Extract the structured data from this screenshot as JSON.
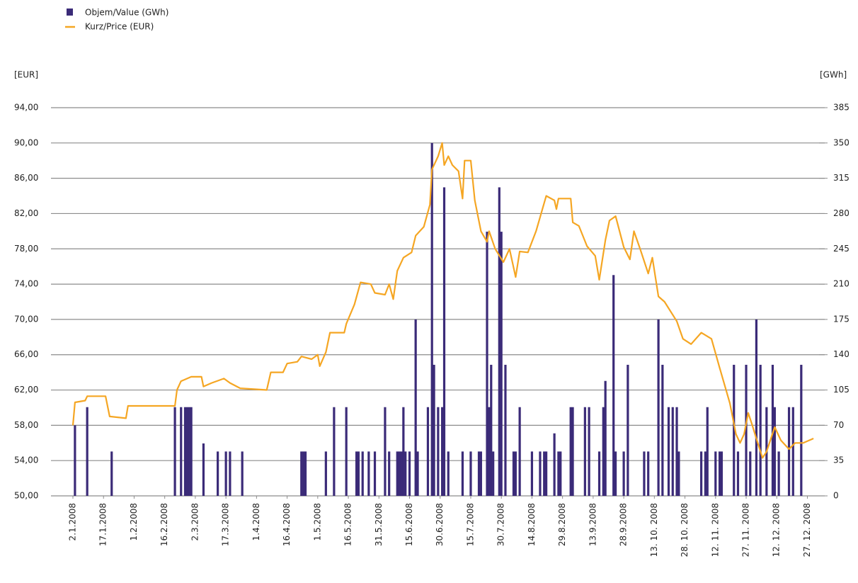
{
  "chart_data": {
    "type": "combo",
    "ylabel": "[EUR]",
    "y2label": "[GWh]",
    "grid": true,
    "legend": "top-left",
    "xlim": [
      "2.1.2008",
      "31.12.2008"
    ],
    "xticks": [
      "2.1.2008",
      "17.1.2008",
      "1.2.2008",
      "16.2.2008",
      "2.3.2008",
      "17.3.2008",
      "1.4.2008",
      "16.4.2008",
      "1.5.2008",
      "16.5.2008",
      "31.5.2008",
      "15.6.2008",
      "30.6.2008",
      "15.7.2008",
      "30.7.2008",
      "14.8.2008",
      "29.8.2008",
      "13.9.2008",
      "28.9.2008",
      "13. 10. 2008",
      "28. 10. 2008",
      "12. 11. 2008",
      "27. 11. 2008",
      "12. 12. 2008",
      "27. 12. 2008"
    ],
    "ylim": [
      50,
      94
    ],
    "yticks": [
      {
        "value": 50,
        "label": "50,00"
      },
      {
        "value": 54,
        "label": "54,00"
      },
      {
        "value": 58,
        "label": "58,00"
      },
      {
        "value": 62,
        "label": "62,00"
      },
      {
        "value": 66,
        "label": "66,00"
      },
      {
        "value": 70,
        "label": "70,00"
      },
      {
        "value": 74,
        "label": "74,00"
      },
      {
        "value": 78,
        "label": "78,00"
      },
      {
        "value": 82,
        "label": "82,00"
      },
      {
        "value": 86,
        "label": "86,00"
      },
      {
        "value": 90,
        "label": "90,00"
      },
      {
        "value": 94,
        "label": "94,00"
      }
    ],
    "y2lim": [
      0,
      385
    ],
    "y2ticks": [
      0,
      35,
      70,
      105,
      140,
      175,
      210,
      245,
      280,
      315,
      350,
      385
    ],
    "series": [
      {
        "name": "Objem/Value (GWh)",
        "type": "bar",
        "axis": "y2",
        "color": "#3b2b78",
        "x": [
          "3.1.2008",
          "9.1.2008",
          "21.1.2008",
          "21.2.2008",
          "24.2.2008",
          "26.2.2008",
          "27.2.2008",
          "28.2.2008",
          "29.2.2008",
          "6.3.2008",
          "13.3.2008",
          "17.3.2008",
          "19.3.2008",
          "25.3.2008",
          "23.4.2008",
          "24.4.2008",
          "25.4.2008",
          "5.5.2008",
          "9.5.2008",
          "15.5.2008",
          "20.5.2008",
          "21.5.2008",
          "23.5.2008",
          "26.5.2008",
          "29.5.2008",
          "3.6.2008",
          "5.6.2008",
          "9.6.2008",
          "10.6.2008",
          "11.6.2008",
          "12.6.2008",
          "13.6.2008",
          "15.6.2008",
          "18.6.2008",
          "19.6.2008",
          "24.6.2008",
          "26.6.2008",
          "27.6.2008",
          "29.6.2008",
          "1.7.2008",
          "2.7.2008",
          "4.7.2008",
          "11.7.2008",
          "15.7.2008",
          "19.7.2008",
          "20.7.2008",
          "23.7.2008",
          "24.7.2008",
          "25.7.2008",
          "26.7.2008",
          "29.7.2008",
          "30.7.2008",
          "1.8.2008",
          "5.8.2008",
          "6.8.2008",
          "8.8.2008",
          "14.8.2008",
          "18.8.2008",
          "20.8.2008",
          "21.8.2008",
          "25.8.2008",
          "27.8.2008",
          "28.8.2008",
          "2.9.2008",
          "3.9.2008",
          "9.9.2008",
          "11.9.2008",
          "16.9.2008",
          "18.9.2008",
          "19.9.2008",
          "23.9.2008",
          "24.9.2008",
          "28.9.2008",
          "30.9.2008",
          "8.10.2008",
          "10.10.2008",
          "15.10.2008",
          "17.10.2008",
          "20.10.2008",
          "22.10.2008",
          "24.10.2008",
          "25.10.2008",
          "5.11.2008",
          "7.11.2008",
          "8.11.2008",
          "12.11.2008",
          "14.11.2008",
          "15.11.2008",
          "21.11.2008",
          "23.11.2008",
          "27.11.2008",
          "29.11.2008",
          "2.12.2008",
          "4.12.2008",
          "7.12.2008",
          "10.12.2008",
          "11.12.2008",
          "13.12.2008",
          "18.12.2008",
          "20.12.2008",
          "24.12.2008"
        ],
        "values": [
          70,
          88,
          44,
          88,
          88,
          88,
          88,
          88,
          88,
          52,
          44,
          44,
          44,
          44,
          44,
          44,
          44,
          44,
          88,
          88,
          44,
          44,
          44,
          44,
          44,
          88,
          44,
          44,
          44,
          44,
          88,
          44,
          44,
          175,
          44,
          88,
          350,
          130,
          88,
          88,
          306,
          44,
          44,
          44,
          44,
          44,
          262,
          88,
          130,
          44,
          306,
          262,
          130,
          44,
          44,
          88,
          44,
          44,
          44,
          44,
          62,
          44,
          44,
          88,
          88,
          88,
          88,
          44,
          88,
          114,
          219,
          44,
          44,
          130,
          44,
          44,
          175,
          130,
          88,
          88,
          88,
          44,
          44,
          44,
          88,
          44,
          44,
          44,
          130,
          44,
          130,
          44,
          175,
          130,
          88,
          130,
          88,
          44,
          88,
          88,
          130
        ]
      },
      {
        "name": "Kurz/Price (EUR)",
        "type": "line",
        "color": "#f5a623",
        "x": [
          "2.1.2008",
          "3.1.2008",
          "8.1.2008",
          "9.1.2008",
          "18.1.2008",
          "20.1.2008",
          "28.1.2008",
          "29.1.2008",
          "21.2.2008",
          "22.2.2008",
          "24.2.2008",
          "29.2.2008",
          "5.3.2008",
          "6.3.2008",
          "10.3.2008",
          "16.3.2008",
          "19.3.2008",
          "24.3.2008",
          "6.4.2008",
          "8.4.2008",
          "14.4.2008",
          "16.4.2008",
          "21.4.2008",
          "23.4.2008",
          "28.4.2008",
          "1.5.2008",
          "2.5.2008",
          "5.5.2008",
          "7.5.2008",
          "14.5.2008",
          "15.5.2008",
          "19.5.2008",
          "22.5.2008",
          "27.5.2008",
          "29.5.2008",
          "3.6.2008",
          "5.6.2008",
          "7.6.2008",
          "9.6.2008",
          "12.6.2008",
          "16.6.2008",
          "18.6.2008",
          "22.6.2008",
          "25.6.2008",
          "26.6.2008",
          "29.6.2008",
          "1.7.2008",
          "2.7.2008",
          "4.7.2008",
          "6.7.2008",
          "9.7.2008",
          "11.7.2008",
          "12.7.2008",
          "15.7.2008",
          "17.7.2008",
          "20.7.2008",
          "23.7.2008",
          "24.7.2008",
          "27.7.2008",
          "31.7.2008",
          "3.8.2008",
          "6.8.2008",
          "8.8.2008",
          "12.8.2008",
          "16.8.2008",
          "21.8.2008",
          "25.8.2008",
          "26.8.2008",
          "27.8.2008",
          "2.9.2008",
          "3.9.2008",
          "6.9.2008",
          "10.9.2008",
          "14.9.2008",
          "16.9.2008",
          "19.9.2008",
          "21.9.2008",
          "24.9.2008",
          "28.9.2008",
          "1.10.2008",
          "3.10.2008",
          "6.10.2008",
          "10.10.2008",
          "12.10.2008",
          "15.10.2008",
          "18.10.2008",
          "24.10.2008",
          "27.10.2008",
          "31.10.2008",
          "5.11.2008",
          "10.11.2008",
          "14.11.2008",
          "19.11.2008",
          "22.11.2008",
          "24.11.2008",
          "26.11.2008",
          "28.11.2008",
          "30.11.2008",
          "2.12.2008",
          "5.12.2008",
          "7.12.2008",
          "11.12.2008",
          "14.12.2008",
          "18.12.2008",
          "21.12.2008",
          "25.12.2008",
          "30.12.2008"
        ],
        "values": [
          58,
          60.6,
          60.8,
          61.3,
          61.3,
          59,
          58.8,
          60.2,
          60.2,
          62,
          63,
          63.5,
          63.5,
          62.4,
          62.8,
          63.3,
          62.8,
          62.2,
          62,
          64,
          64,
          65,
          65.2,
          65.8,
          65.5,
          66,
          64.7,
          66.3,
          68.5,
          68.5,
          69.5,
          71.7,
          74.2,
          74,
          73,
          72.8,
          74,
          72.3,
          75.5,
          77,
          77.6,
          79.5,
          80.5,
          83,
          87,
          88.5,
          90,
          87.5,
          88.5,
          87.5,
          86.8,
          83.7,
          88,
          88,
          83.5,
          80,
          78.8,
          80,
          78,
          76.5,
          78,
          74.8,
          77.7,
          77.6,
          80,
          84,
          83.5,
          82.5,
          83.7,
          83.7,
          81,
          80.6,
          78.3,
          77.2,
          74.5,
          79,
          81.2,
          81.7,
          78.2,
          76.8,
          80,
          78,
          75.2,
          77,
          72.6,
          72,
          69.8,
          67.8,
          67.2,
          68.5,
          67.8,
          64.5,
          60.5,
          57,
          56,
          57,
          59.4,
          58,
          56.5,
          54.3,
          55,
          57.8,
          56.3,
          55.3,
          56,
          56,
          56.5
        ]
      }
    ]
  }
}
